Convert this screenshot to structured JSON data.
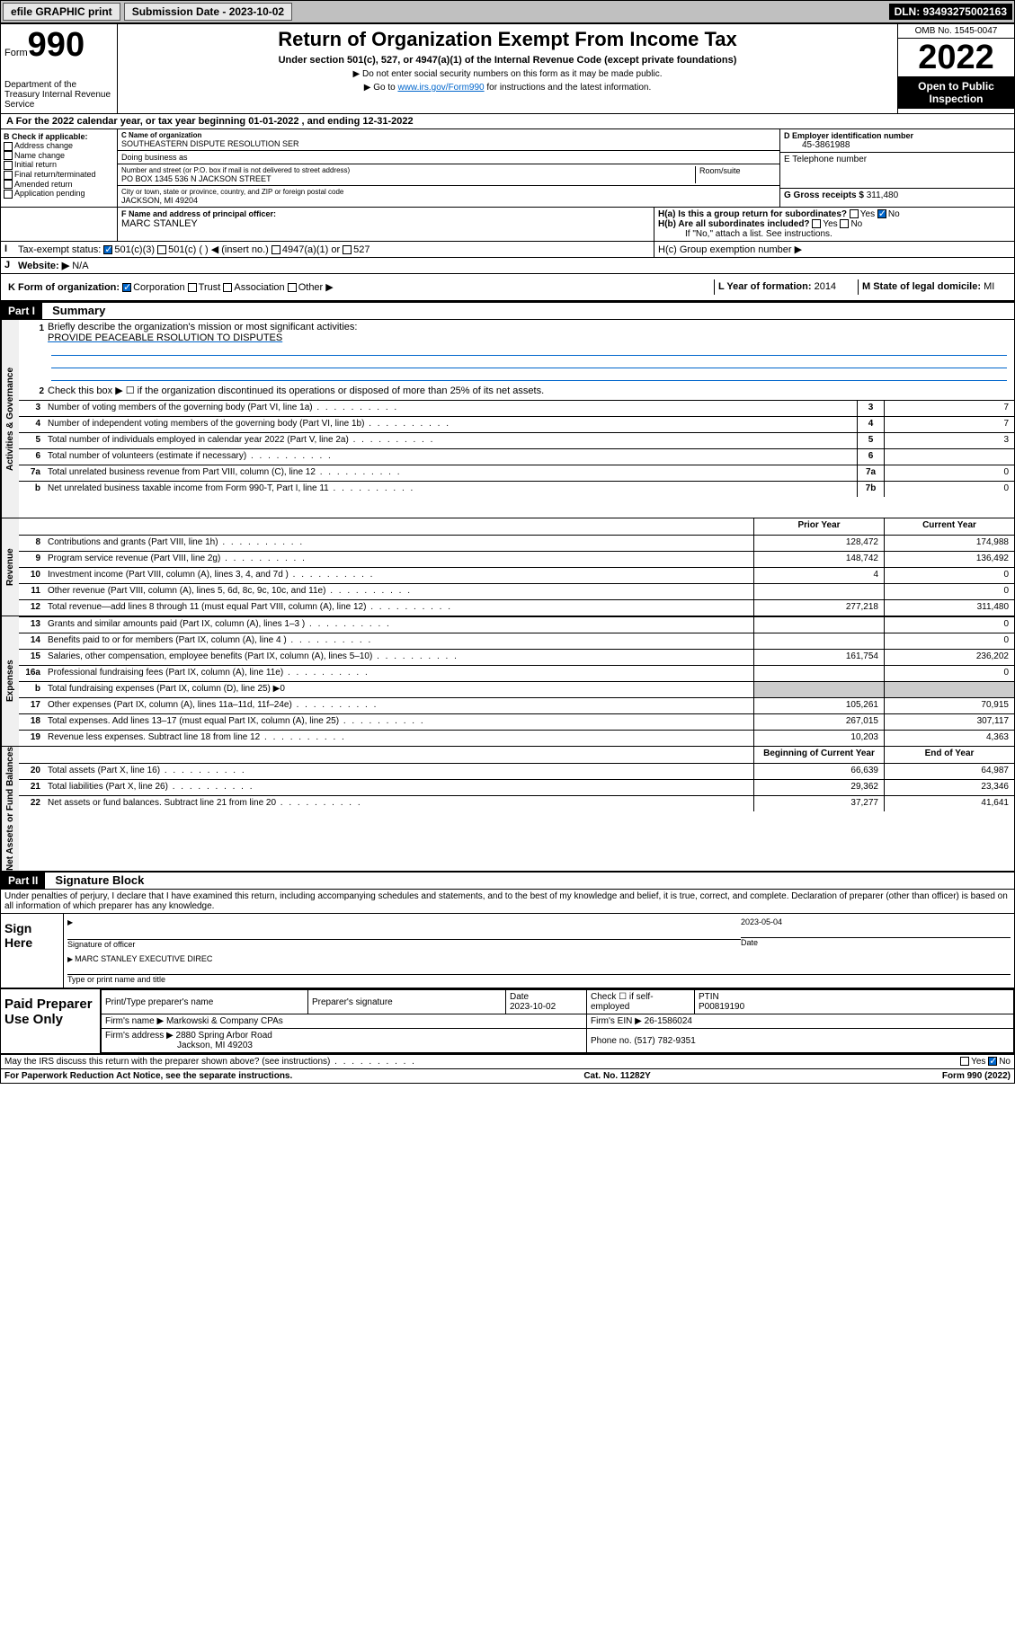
{
  "topbar": {
    "efile": "efile GRAPHIC print",
    "subdate_label": "Submission Date - 2023-10-02",
    "dln": "DLN: 93493275002163"
  },
  "header": {
    "form_label": "Form",
    "form_number": "990",
    "dept": "Department of the Treasury Internal Revenue Service",
    "title": "Return of Organization Exempt From Income Tax",
    "subtitle": "Under section 501(c), 527, or 4947(a)(1) of the Internal Revenue Code (except private foundations)",
    "instr1": "▶ Do not enter social security numbers on this form as it may be made public.",
    "instr2_pre": "▶ Go to ",
    "instr2_link": "www.irs.gov/Form990",
    "instr2_post": " for instructions and the latest information.",
    "omb": "OMB No. 1545-0047",
    "year": "2022",
    "inspection": "Open to Public Inspection"
  },
  "period": {
    "a": "A For the 2022 calendar year, or tax year beginning 01-01-2022   , and ending 12-31-2022"
  },
  "checkboxes_b": {
    "label": "B Check if applicable:",
    "items": [
      "Address change",
      "Name change",
      "Initial return",
      "Final return/terminated",
      "Amended return",
      "Application pending"
    ]
  },
  "entity": {
    "c_name_label": "C Name of organization",
    "c_name": "SOUTHEASTERN DISPUTE RESOLUTION SER",
    "dba_label": "Doing business as",
    "addr_label": "Number and street (or P.O. box if mail is not delivered to street address)",
    "addr": "PO BOX 1345 536 N JACKSON STREET",
    "room_label": "Room/suite",
    "city_label": "City or town, state or province, country, and ZIP or foreign postal code",
    "city": "JACKSON, MI  49204",
    "d_label": "D Employer identification number",
    "d_ein": "45-3861988",
    "e_label": "E Telephone number",
    "g_label": "G Gross receipts $",
    "g_amount": "311,480",
    "f_label": "F Name and address of principal officer:",
    "f_name": "MARC STANLEY",
    "h_a": "H(a)  Is this a group return for subordinates?",
    "h_b": "H(b)  Are all subordinates included?",
    "h_b_note": "If \"No,\" attach a list. See instructions.",
    "h_c": "H(c)  Group exemption number ▶",
    "i_label": "Tax-exempt status:",
    "i_501c3": "501(c)(3)",
    "i_501c": "501(c) (  ) ◀ (insert no.)",
    "i_4947": "4947(a)(1) or",
    "i_527": "527",
    "j_label": "Website: ▶",
    "j_val": "N/A",
    "k_label": "K Form of organization:",
    "k_corp": "Corporation",
    "k_trust": "Trust",
    "k_assoc": "Association",
    "k_other": "Other ▶",
    "l_label": "L Year of formation:",
    "l_val": "2014",
    "m_label": "M State of legal domicile:",
    "m_val": "MI"
  },
  "part1": {
    "header": "Part I",
    "title": "Summary",
    "line1_label": "Briefly describe the organization's mission or most significant activities:",
    "line1_val": "PROVIDE PEACEABLE RSOLUTION TO DISPUTES",
    "line2": "Check this box ▶ ☐  if the organization discontinued its operations or disposed of more than 25% of its net assets.",
    "vtab_gov": "Activities & Governance",
    "vtab_rev": "Revenue",
    "vtab_exp": "Expenses",
    "vtab_net": "Net Assets or Fund Balances",
    "col_prior": "Prior Year",
    "col_current": "Current Year",
    "col_begin": "Beginning of Current Year",
    "col_end": "End of Year",
    "rows_gov": [
      {
        "n": "3",
        "desc": "Number of voting members of the governing body (Part VI, line 1a)",
        "box": "3",
        "val": "7"
      },
      {
        "n": "4",
        "desc": "Number of independent voting members of the governing body (Part VI, line 1b)",
        "box": "4",
        "val": "7"
      },
      {
        "n": "5",
        "desc": "Total number of individuals employed in calendar year 2022 (Part V, line 2a)",
        "box": "5",
        "val": "3"
      },
      {
        "n": "6",
        "desc": "Total number of volunteers (estimate if necessary)",
        "box": "6",
        "val": ""
      },
      {
        "n": "7a",
        "desc": "Total unrelated business revenue from Part VIII, column (C), line 12",
        "box": "7a",
        "val": "0"
      },
      {
        "n": "b",
        "desc": "Net unrelated business taxable income from Form 990-T, Part I, line 11",
        "box": "7b",
        "val": "0"
      }
    ],
    "rows_rev": [
      {
        "n": "8",
        "desc": "Contributions and grants (Part VIII, line 1h)",
        "prior": "128,472",
        "cur": "174,988"
      },
      {
        "n": "9",
        "desc": "Program service revenue (Part VIII, line 2g)",
        "prior": "148,742",
        "cur": "136,492"
      },
      {
        "n": "10",
        "desc": "Investment income (Part VIII, column (A), lines 3, 4, and 7d )",
        "prior": "4",
        "cur": "0"
      },
      {
        "n": "11",
        "desc": "Other revenue (Part VIII, column (A), lines 5, 6d, 8c, 9c, 10c, and 11e)",
        "prior": "",
        "cur": "0"
      },
      {
        "n": "12",
        "desc": "Total revenue—add lines 8 through 11 (must equal Part VIII, column (A), line 12)",
        "prior": "277,218",
        "cur": "311,480"
      }
    ],
    "rows_exp": [
      {
        "n": "13",
        "desc": "Grants and similar amounts paid (Part IX, column (A), lines 1–3 )",
        "prior": "",
        "cur": "0"
      },
      {
        "n": "14",
        "desc": "Benefits paid to or for members (Part IX, column (A), line 4 )",
        "prior": "",
        "cur": "0"
      },
      {
        "n": "15",
        "desc": "Salaries, other compensation, employee benefits (Part IX, column (A), lines 5–10)",
        "prior": "161,754",
        "cur": "236,202"
      },
      {
        "n": "16a",
        "desc": "Professional fundraising fees (Part IX, column (A), line 11e)",
        "prior": "",
        "cur": "0"
      },
      {
        "n": "b",
        "desc": "Total fundraising expenses (Part IX, column (D), line 25) ▶0",
        "prior": null,
        "cur": null
      },
      {
        "n": "17",
        "desc": "Other expenses (Part IX, column (A), lines 11a–11d, 11f–24e)",
        "prior": "105,261",
        "cur": "70,915"
      },
      {
        "n": "18",
        "desc": "Total expenses. Add lines 13–17 (must equal Part IX, column (A), line 25)",
        "prior": "267,015",
        "cur": "307,117"
      },
      {
        "n": "19",
        "desc": "Revenue less expenses. Subtract line 18 from line 12",
        "prior": "10,203",
        "cur": "4,363"
      }
    ],
    "rows_net": [
      {
        "n": "20",
        "desc": "Total assets (Part X, line 16)",
        "prior": "66,639",
        "cur": "64,987"
      },
      {
        "n": "21",
        "desc": "Total liabilities (Part X, line 26)",
        "prior": "29,362",
        "cur": "23,346"
      },
      {
        "n": "22",
        "desc": "Net assets or fund balances. Subtract line 21 from line 20",
        "prior": "37,277",
        "cur": "41,641"
      }
    ]
  },
  "part2": {
    "header": "Part II",
    "title": "Signature Block",
    "penalty": "Under penalties of perjury, I declare that I have examined this return, including accompanying schedules and statements, and to the best of my knowledge and belief, it is true, correct, and complete. Declaration of preparer (other than officer) is based on all information of which preparer has any knowledge.",
    "sign_here": "Sign Here",
    "sig_officer": "Signature of officer",
    "sig_date": "2023-05-04",
    "date_label": "Date",
    "officer_name": "MARC STANLEY EXECUTIVE DIREC",
    "type_name": "Type or print name and title",
    "paid_label": "Paid Preparer Use Only",
    "prep_name_label": "Print/Type preparer's name",
    "prep_sig_label": "Preparer's signature",
    "prep_date_label": "Date",
    "prep_date": "2023-10-02",
    "check_self": "Check ☐ if self-employed",
    "ptin_label": "PTIN",
    "ptin": "P00819190",
    "firm_name_label": "Firm's name    ▶",
    "firm_name": "Markowski & Company CPAs",
    "firm_ein_label": "Firm's EIN ▶",
    "firm_ein": "26-1586024",
    "firm_addr_label": "Firm's address ▶",
    "firm_addr": "2880 Spring Arbor Road",
    "firm_city": "Jackson, MI  49203",
    "phone_label": "Phone no.",
    "phone": "(517) 782-9351",
    "may_irs": "May the IRS discuss this return with the preparer shown above? (see instructions)",
    "paperwork": "For Paperwork Reduction Act Notice, see the separate instructions.",
    "catno": "Cat. No. 11282Y",
    "formfoot": "Form 990 (2022)"
  },
  "yesno": {
    "yes": "Yes",
    "no": "No"
  }
}
